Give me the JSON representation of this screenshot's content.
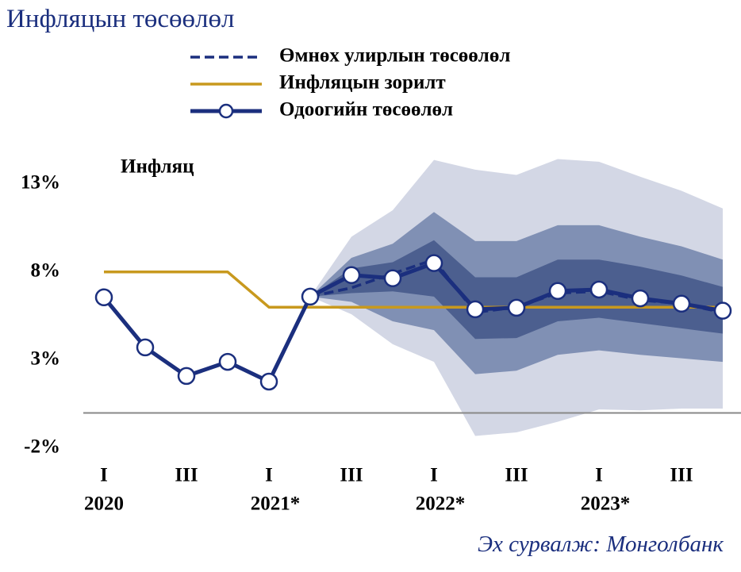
{
  "chart_data": {
    "type": "fan",
    "title": "Инфляцын төсөөлөл",
    "panel_label": "Инфляц",
    "source": "Эх сурвалж: Монголбанк",
    "categories": [
      "I",
      null,
      "III",
      null,
      "I",
      null,
      "III",
      null,
      "I",
      null,
      "III",
      null,
      "I",
      null,
      "III",
      null
    ],
    "x_groups": [
      "2020",
      "2021*",
      "2022*",
      "2023*"
    ],
    "ylim": [
      -2,
      16
    ],
    "yticks": [
      {
        "value": 13,
        "label": "13%"
      },
      {
        "value": 8,
        "label": "8%"
      },
      {
        "value": 3,
        "label": "3%"
      },
      {
        "value": -2,
        "label": "-2%"
      }
    ],
    "zero_line": true,
    "bands": [
      {
        "color": "#d3d7e5",
        "upper": [
          null,
          null,
          null,
          null,
          null,
          6.6,
          10.0,
          11.5,
          14.35,
          13.8,
          13.5,
          14.4,
          14.25,
          13.4,
          12.6,
          11.6
        ],
        "lower": [
          null,
          null,
          null,
          null,
          null,
          6.6,
          5.6,
          3.9,
          2.9,
          -1.3,
          -1.1,
          -0.5,
          0.2,
          0.15,
          0.25,
          0.25
        ]
      },
      {
        "color": "#8090b4",
        "upper": [
          null,
          null,
          null,
          null,
          null,
          6.6,
          8.8,
          9.6,
          11.4,
          9.75,
          9.75,
          10.65,
          10.65,
          10.0,
          9.45,
          8.7
        ],
        "lower": [
          null,
          null,
          null,
          null,
          null,
          6.6,
          6.3,
          5.2,
          4.7,
          2.2,
          2.4,
          3.3,
          3.55,
          3.3,
          3.1,
          2.9
        ]
      },
      {
        "color": "#4c5f8f",
        "upper": [
          null,
          null,
          null,
          null,
          null,
          6.6,
          8.2,
          8.55,
          9.8,
          7.7,
          7.7,
          8.7,
          8.7,
          8.3,
          7.8,
          7.15
        ],
        "lower": [
          null,
          null,
          null,
          null,
          null,
          6.6,
          6.8,
          6.9,
          6.6,
          4.2,
          4.25,
          5.2,
          5.4,
          5.1,
          4.8,
          4.5
        ]
      }
    ],
    "series": [
      {
        "name": "Өмнөх улирлын төсөөлөл",
        "color": "#1b2f7e",
        "dashed": true,
        "markers": false,
        "values": [
          null,
          null,
          null,
          null,
          null,
          6.6,
          7.1,
          7.9,
          8.7,
          5.7,
          6.0,
          6.8,
          6.9,
          6.4,
          6.2,
          5.7
        ]
      },
      {
        "name": "Инфляцын зорилт",
        "color": "#c8991e",
        "dashed": false,
        "markers": false,
        "values": [
          8,
          8,
          8,
          8,
          6,
          6,
          6,
          6,
          6,
          6,
          6,
          6,
          6,
          6,
          6,
          6
        ]
      },
      {
        "name": "Одоогийн төсөөлөл",
        "color": "#1b2f7e",
        "dashed": false,
        "markers": true,
        "values": [
          6.56,
          3.72,
          2.1,
          2.9,
          1.78,
          6.6,
          7.82,
          7.64,
          8.5,
          5.88,
          5.97,
          6.92,
          7.0,
          6.5,
          6.2,
          5.8
        ]
      }
    ]
  }
}
